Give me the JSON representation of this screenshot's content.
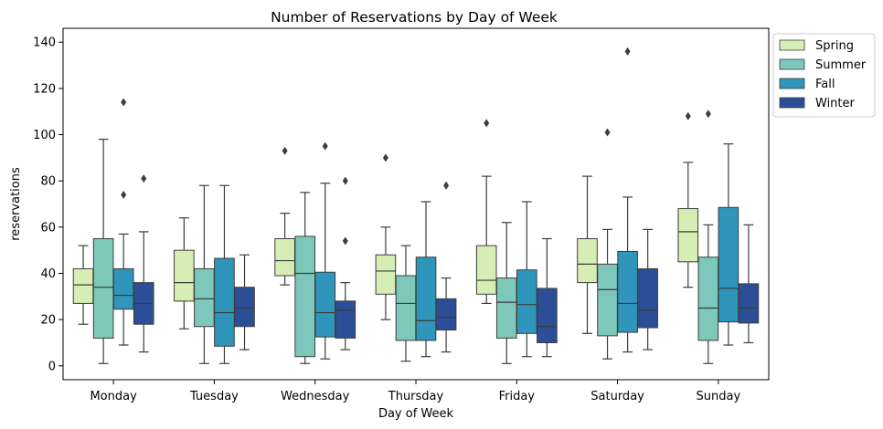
{
  "chart_data": {
    "type": "boxplot",
    "title": "Number of Reservations by Day of Week",
    "xlabel": "Day of Week",
    "ylabel": "reservations",
    "ylim": [
      -6,
      146
    ],
    "yticks": [
      0,
      20,
      40,
      60,
      80,
      100,
      120,
      140
    ],
    "categories": [
      "Monday",
      "Tuesday",
      "Wednesday",
      "Thursday",
      "Friday",
      "Saturday",
      "Sunday"
    ],
    "legend_position": "outside-top-right",
    "series": [
      {
        "name": "Spring",
        "color": "#d6edb4",
        "boxes": [
          {
            "whislo": 18,
            "q1": 27,
            "med": 35,
            "q3": 42,
            "whishi": 52,
            "fliers": []
          },
          {
            "whislo": 16,
            "q1": 28,
            "med": 36,
            "q3": 50,
            "whishi": 64,
            "fliers": []
          },
          {
            "whislo": 35,
            "q1": 39,
            "med": 45.5,
            "q3": 55,
            "whishi": 66,
            "fliers": [
              93
            ]
          },
          {
            "whislo": 20,
            "q1": 31,
            "med": 41,
            "q3": 48,
            "whishi": 60,
            "fliers": [
              90
            ]
          },
          {
            "whislo": 27,
            "q1": 31,
            "med": 37,
            "q3": 52,
            "whishi": 82,
            "fliers": [
              105
            ]
          },
          {
            "whislo": 14,
            "q1": 36,
            "med": 44,
            "q3": 55,
            "whishi": 82,
            "fliers": []
          },
          {
            "whislo": 34,
            "q1": 45,
            "med": 58,
            "q3": 68,
            "whishi": 88,
            "fliers": [
              108
            ]
          }
        ]
      },
      {
        "name": "Summer",
        "color": "#7dc8ba",
        "boxes": [
          {
            "whislo": 1,
            "q1": 12,
            "med": 34,
            "q3": 55,
            "whishi": 98,
            "fliers": []
          },
          {
            "whislo": 1,
            "q1": 17,
            "med": 29,
            "q3": 42,
            "whishi": 78,
            "fliers": []
          },
          {
            "whislo": 1,
            "q1": 4,
            "med": 40,
            "q3": 56,
            "whishi": 75,
            "fliers": []
          },
          {
            "whislo": 2,
            "q1": 11,
            "med": 27,
            "q3": 39,
            "whishi": 52,
            "fliers": []
          },
          {
            "whislo": 1,
            "q1": 12,
            "med": 27.5,
            "q3": 38,
            "whishi": 62,
            "fliers": []
          },
          {
            "whislo": 3,
            "q1": 13,
            "med": 33,
            "q3": 44,
            "whishi": 59,
            "fliers": [
              101
            ]
          },
          {
            "whislo": 1,
            "q1": 11,
            "med": 25,
            "q3": 47,
            "whishi": 61,
            "fliers": [
              109
            ]
          }
        ]
      },
      {
        "name": "Fall",
        "color": "#2f95ba",
        "boxes": [
          {
            "whislo": 9,
            "q1": 24.5,
            "med": 30.5,
            "q3": 42,
            "whishi": 57,
            "fliers": [
              74,
              114
            ]
          },
          {
            "whislo": 1,
            "q1": 8.5,
            "med": 23,
            "q3": 46.5,
            "whishi": 78,
            "fliers": []
          },
          {
            "whislo": 3,
            "q1": 12.5,
            "med": 23,
            "q3": 40.5,
            "whishi": 79,
            "fliers": [
              95
            ]
          },
          {
            "whislo": 4,
            "q1": 11,
            "med": 19.5,
            "q3": 47,
            "whishi": 71,
            "fliers": []
          },
          {
            "whislo": 4,
            "q1": 14,
            "med": 26.5,
            "q3": 41.5,
            "whishi": 71,
            "fliers": []
          },
          {
            "whislo": 6,
            "q1": 14.5,
            "med": 27,
            "q3": 49.5,
            "whishi": 73,
            "fliers": [
              136
            ]
          },
          {
            "whislo": 9,
            "q1": 19,
            "med": 33.5,
            "q3": 68.5,
            "whishi": 96,
            "fliers": []
          }
        ]
      },
      {
        "name": "Winter",
        "color": "#2c4e97",
        "boxes": [
          {
            "whislo": 6,
            "q1": 18,
            "med": 27,
            "q3": 36,
            "whishi": 58,
            "fliers": [
              81
            ]
          },
          {
            "whislo": 7,
            "q1": 17,
            "med": 25,
            "q3": 34,
            "whishi": 48,
            "fliers": []
          },
          {
            "whislo": 7,
            "q1": 12,
            "med": 24,
            "q3": 28,
            "whishi": 36,
            "fliers": [
              54,
              80
            ]
          },
          {
            "whislo": 6,
            "q1": 15.5,
            "med": 21,
            "q3": 29,
            "whishi": 38,
            "fliers": [
              78
            ]
          },
          {
            "whislo": 4,
            "q1": 10,
            "med": 17,
            "q3": 33.5,
            "whishi": 55,
            "fliers": []
          },
          {
            "whislo": 7,
            "q1": 16.5,
            "med": 24,
            "q3": 42,
            "whishi": 59,
            "fliers": []
          },
          {
            "whislo": 10,
            "q1": 18.5,
            "med": 25,
            "q3": 35.5,
            "whishi": 61,
            "fliers": []
          }
        ]
      }
    ]
  }
}
